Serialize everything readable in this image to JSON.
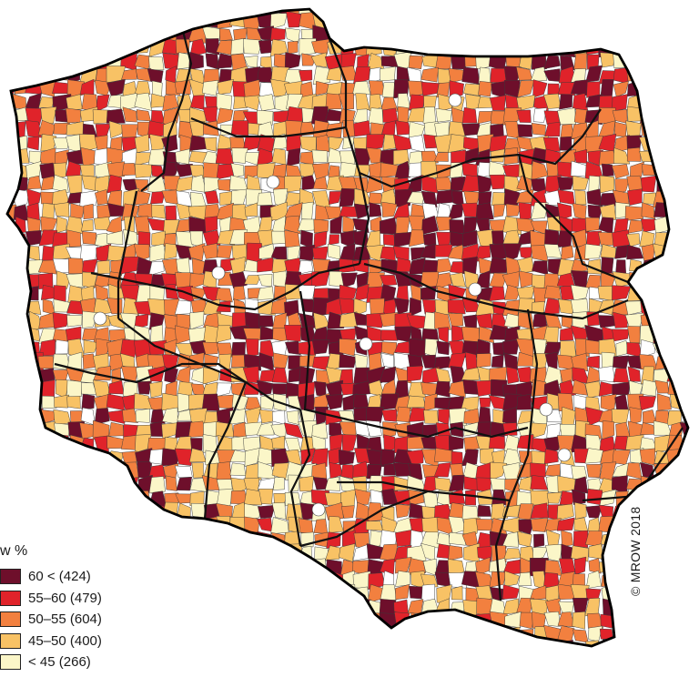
{
  "legend": {
    "title": "w %",
    "classes": [
      {
        "label": "60 < (424)",
        "color": "#6e0f2b",
        "key": "c60plus",
        "weight": 424
      },
      {
        "label": "55–60  (479)",
        "color": "#e0232a",
        "key": "c55_60",
        "weight": 479
      },
      {
        "label": "50–55 (604)",
        "color": "#f2803f",
        "key": "c50_55",
        "weight": 604
      },
      {
        "label": "45–50 (400)",
        "color": "#f8c265",
        "key": "c45_50",
        "weight": 400
      },
      {
        "label": "< 45 (266)",
        "color": "#fbf6c8",
        "key": "clt45",
        "weight": 266
      }
    ]
  },
  "map": {
    "no_data_color": "#ffffff",
    "border_color": "#111111",
    "inner_border_color": "#3a3a3a"
  },
  "copyright": "© MROW 2018"
}
